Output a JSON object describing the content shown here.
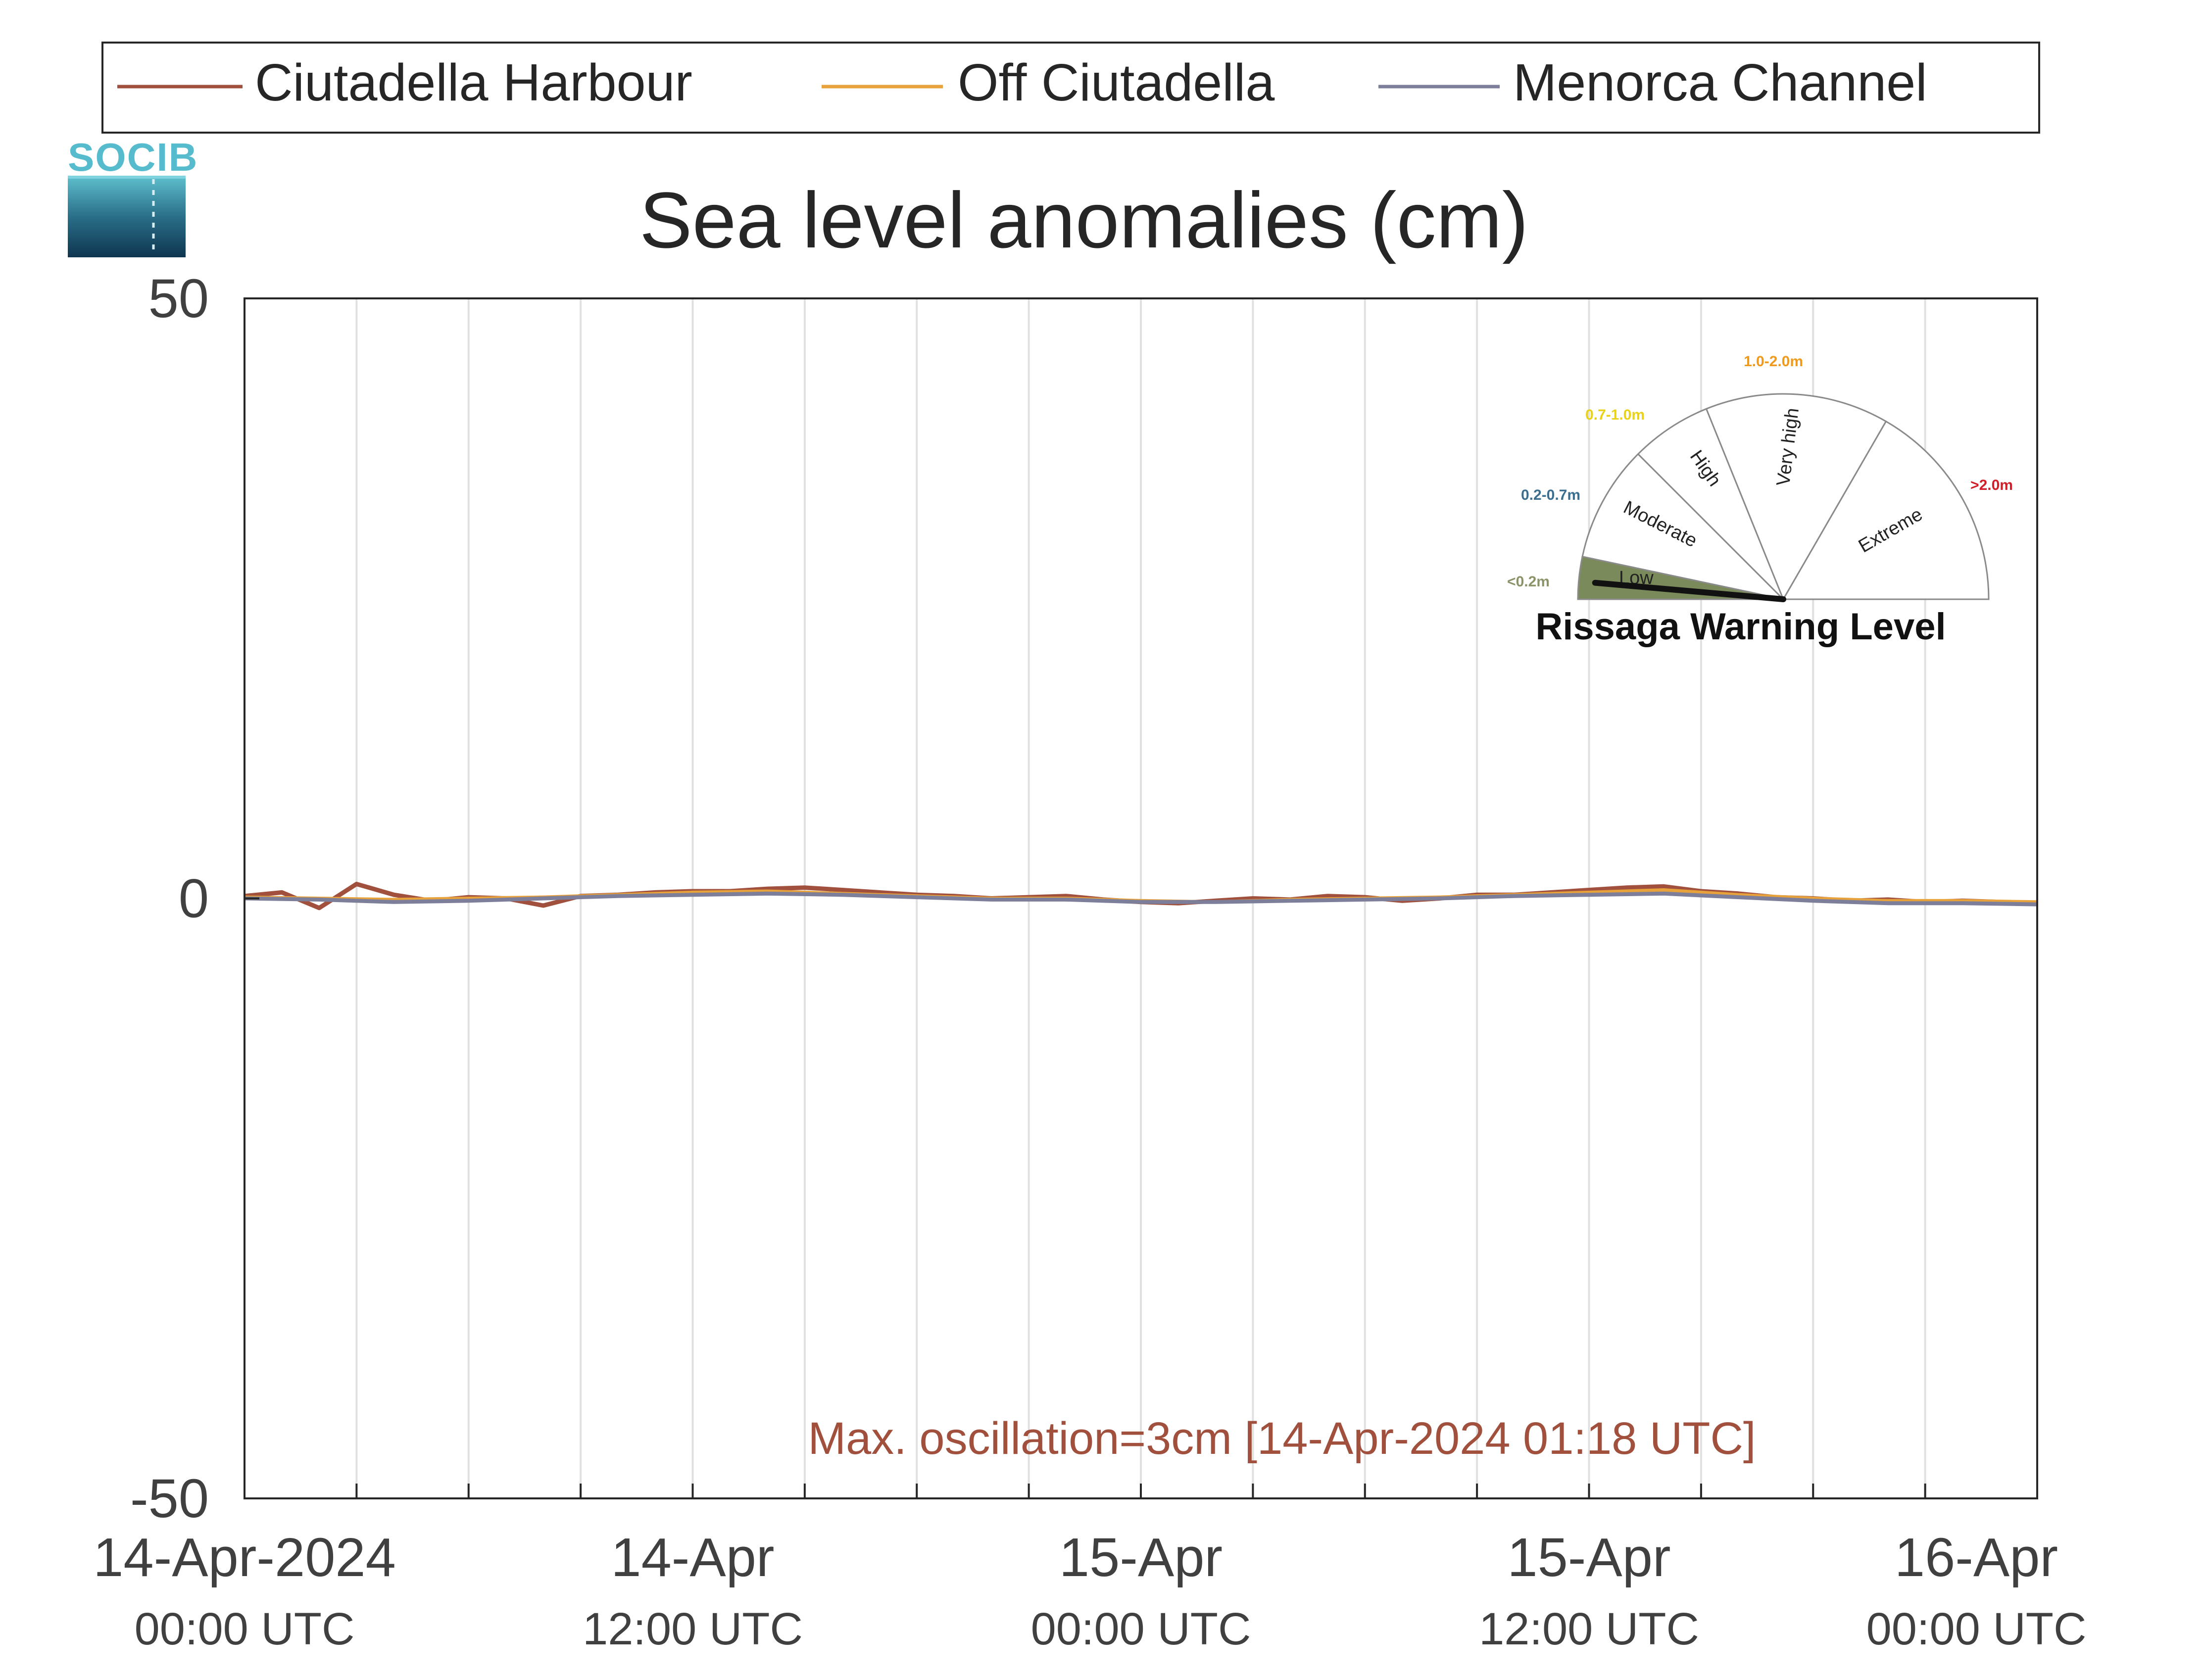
{
  "legend": {
    "entries": [
      {
        "name": "Ciutadella Harbour",
        "color": "#a0503c"
      },
      {
        "name": "Off Ciutadella",
        "color": "#e8a23c"
      },
      {
        "name": "Menorca Channel",
        "color": "#7d7f9a"
      }
    ]
  },
  "logo": {
    "text": "SOCIB",
    "color": "#56bccd"
  },
  "chart_data": {
    "type": "line",
    "title": "Sea level anomalies (cm)",
    "xlabel": "",
    "ylabel": "",
    "ylim": [
      -50,
      50
    ],
    "yticks": [
      -50,
      0,
      50
    ],
    "xlim": [
      "2024-04-14 00:00",
      "2024-04-16 00:00"
    ],
    "grid": "vertical, every 3 hours",
    "xtick_labels": [
      {
        "x": "2024-04-14 00:00",
        "line1": "14-Apr-2024",
        "line2": "00:00 UTC"
      },
      {
        "x": "2024-04-14 12:00",
        "line1": "14-Apr",
        "line2": "12:00 UTC"
      },
      {
        "x": "2024-04-15 00:00",
        "line1": "15-Apr",
        "line2": "00:00 UTC"
      },
      {
        "x": "2024-04-15 12:00",
        "line1": "15-Apr",
        "line2": "12:00 UTC"
      },
      {
        "x": "2024-04-16 00:00",
        "line1": "16-Apr",
        "line2": "00:00 UTC"
      }
    ],
    "annotation": "Max. oscillation=3cm [14-Apr-2024 01:18 UTC]",
    "annotation_color": "#a0503c",
    "series": [
      {
        "name": "Ciutadella Harbour",
        "color": "#a0503c",
        "x": [
          "2024-04-14 00:00",
          "2024-04-14 01:00",
          "2024-04-14 02:00",
          "2024-04-14 03:00",
          "2024-04-14 04:00",
          "2024-04-14 05:00",
          "2024-04-14 06:00",
          "2024-04-14 07:00",
          "2024-04-14 08:00",
          "2024-04-14 09:00",
          "2024-04-14 10:00",
          "2024-04-14 11:00",
          "2024-04-14 12:00",
          "2024-04-14 13:00",
          "2024-04-14 14:00",
          "2024-04-14 15:00",
          "2024-04-14 16:00",
          "2024-04-14 17:00",
          "2024-04-14 18:00",
          "2024-04-14 19:00",
          "2024-04-14 20:00",
          "2024-04-14 21:00",
          "2024-04-14 22:00",
          "2024-04-14 23:00",
          "2024-04-15 00:00",
          "2024-04-15 01:00",
          "2024-04-15 02:00",
          "2024-04-15 03:00",
          "2024-04-15 04:00",
          "2024-04-15 05:00",
          "2024-04-15 06:00",
          "2024-04-15 07:00",
          "2024-04-15 08:00",
          "2024-04-15 09:00",
          "2024-04-15 10:00",
          "2024-04-15 11:00",
          "2024-04-15 12:00",
          "2024-04-15 13:00",
          "2024-04-15 14:00",
          "2024-04-15 15:00",
          "2024-04-15 16:00",
          "2024-04-15 17:00",
          "2024-04-15 18:00",
          "2024-04-15 19:00",
          "2024-04-15 20:00",
          "2024-04-15 21:00",
          "2024-04-15 22:00",
          "2024-04-15 23:00",
          "2024-04-16 00:00"
        ],
        "values": [
          0.2,
          0.5,
          -0.8,
          1.2,
          0.3,
          -0.2,
          0.1,
          0.0,
          -0.6,
          0.2,
          0.3,
          0.5,
          0.6,
          0.6,
          0.8,
          0.9,
          0.7,
          0.5,
          0.3,
          0.2,
          0.0,
          0.1,
          0.2,
          -0.1,
          -0.3,
          -0.4,
          -0.2,
          0.0,
          -0.1,
          0.2,
          0.1,
          -0.2,
          0.0,
          0.3,
          0.3,
          0.5,
          0.7,
          0.9,
          1.0,
          0.6,
          0.4,
          0.1,
          0.0,
          -0.2,
          -0.1,
          -0.3,
          -0.2,
          -0.3,
          -0.4
        ]
      },
      {
        "name": "Off Ciutadella",
        "color": "#e8a23c",
        "x": [
          "2024-04-14 00:00",
          "2024-04-14 02:00",
          "2024-04-14 04:00",
          "2024-04-14 06:00",
          "2024-04-14 08:00",
          "2024-04-14 10:00",
          "2024-04-14 12:00",
          "2024-04-14 14:00",
          "2024-04-14 16:00",
          "2024-04-14 18:00",
          "2024-04-14 20:00",
          "2024-04-14 22:00",
          "2024-04-15 00:00",
          "2024-04-15 02:00",
          "2024-04-15 04:00",
          "2024-04-15 06:00",
          "2024-04-15 08:00",
          "2024-04-15 10:00",
          "2024-04-15 12:00",
          "2024-04-15 14:00",
          "2024-04-15 16:00",
          "2024-04-15 18:00",
          "2024-04-15 20:00",
          "2024-04-15 22:00",
          "2024-04-16 00:00"
        ],
        "values": [
          0.1,
          0.0,
          -0.1,
          0.0,
          0.1,
          0.3,
          0.5,
          0.6,
          0.4,
          0.2,
          0.0,
          0.0,
          -0.2,
          -0.3,
          -0.1,
          0.0,
          0.1,
          0.3,
          0.5,
          0.7,
          0.3,
          0.0,
          -0.2,
          -0.2,
          -0.3
        ]
      },
      {
        "name": "Menorca Channel",
        "color": "#7d7f9a",
        "x": [
          "2024-04-14 00:00",
          "2024-04-14 02:00",
          "2024-04-14 04:00",
          "2024-04-14 06:00",
          "2024-04-14 08:00",
          "2024-04-14 10:00",
          "2024-04-14 12:00",
          "2024-04-14 14:00",
          "2024-04-14 16:00",
          "2024-04-14 18:00",
          "2024-04-14 20:00",
          "2024-04-14 22:00",
          "2024-04-15 00:00",
          "2024-04-15 02:00",
          "2024-04-15 04:00",
          "2024-04-15 06:00",
          "2024-04-15 08:00",
          "2024-04-15 10:00",
          "2024-04-15 12:00",
          "2024-04-15 14:00",
          "2024-04-15 16:00",
          "2024-04-15 18:00",
          "2024-04-15 20:00",
          "2024-04-15 22:00",
          "2024-04-16 00:00"
        ],
        "values": [
          0.0,
          -0.1,
          -0.3,
          -0.2,
          0.0,
          0.2,
          0.3,
          0.4,
          0.3,
          0.1,
          -0.1,
          -0.1,
          -0.3,
          -0.3,
          -0.2,
          -0.1,
          0.0,
          0.2,
          0.3,
          0.4,
          0.1,
          -0.2,
          -0.4,
          -0.4,
          -0.5
        ]
      }
    ]
  },
  "gauge": {
    "title": "Rissaga Warning Level",
    "current_level": "Low",
    "levels": [
      {
        "name": "Low",
        "range": "<0.2m",
        "range_color": "#8a9468",
        "fill": "#7b8a5a"
      },
      {
        "name": "Moderate",
        "range": "0.2-0.7m",
        "range_color": "#3a6f8f",
        "fill": "#ffffff"
      },
      {
        "name": "High",
        "range": "0.7-1.0m",
        "range_color": "#e8d21a",
        "fill": "#ffffff"
      },
      {
        "name": "Very high",
        "range": "1.0-2.0m",
        "range_color": "#ef9a1c",
        "fill": "#ffffff"
      },
      {
        "name": "Extreme",
        "range": ">2.0m",
        "range_color": "#d01f2a",
        "fill": "#ffffff"
      }
    ]
  }
}
